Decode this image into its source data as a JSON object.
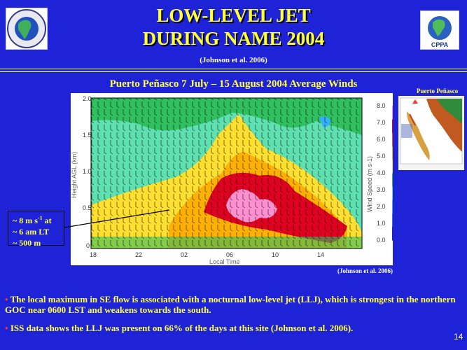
{
  "header": {
    "title_line1": "LOW-LEVEL JET",
    "title_line2": "DURING NAME 2004",
    "citation": "(Johnson et al. 2006)",
    "left_logo": "NAME-logo",
    "right_logo": "CPPA-logo",
    "right_logo_label": "CPPA"
  },
  "plot_title": "Puerto Peñasco 7 July – 15 August 2004 Average Winds",
  "inset_map": {
    "label": "Puerto Peñasco"
  },
  "plot_citation": "(Johnson et al. 2006)",
  "callout": {
    "line1": "~ 8 m s",
    "line1_sup": "-1",
    "line1_end": " at",
    "line2": "~ 6 am LT",
    "line3": "~ 500 m"
  },
  "bullets": [
    "The local maximum in SE flow is associated with a nocturnal low-level jet (LLJ), which is strongest in the northern GOC near 0600 LST and weakens towards the south.",
    "ISS data shows the LLJ was present on 66% of the days at this site (Johnson et al. 2006)."
  ],
  "page_number": "14",
  "colors": {
    "background": "#1f23d8",
    "title": "#ffff3a",
    "bullet_marker": "#ff3030"
  },
  "chart_data": {
    "type": "heatmap",
    "title": "",
    "xlabel": "Local Time",
    "ylabel": "Height AGL (km)",
    "x_ticks": [
      "18",
      "22",
      "02",
      "06",
      "10",
      "14"
    ],
    "y_ticks": [
      "0",
      "0.5",
      "1.0",
      "1.5",
      "2.0"
    ],
    "ylim": [
      0,
      2.0
    ],
    "colorbar_label": "Wind Speed (m s-1)",
    "colorbar_ticks": [
      "0.0",
      "1.0",
      "2.0",
      "3.0",
      "4.0",
      "5.0",
      "6.0",
      "7.0",
      "8.0"
    ],
    "colorbar_colors": [
      "#2020b0",
      "#3a6bff",
      "#35b0ff",
      "#5fe0b0",
      "#30c060",
      "#ffe030",
      "#ffb000",
      "#ff5010",
      "#e00020",
      "#ff90d0"
    ],
    "peak": {
      "speed": 8,
      "time": "06",
      "height_km": 0.5
    }
  }
}
